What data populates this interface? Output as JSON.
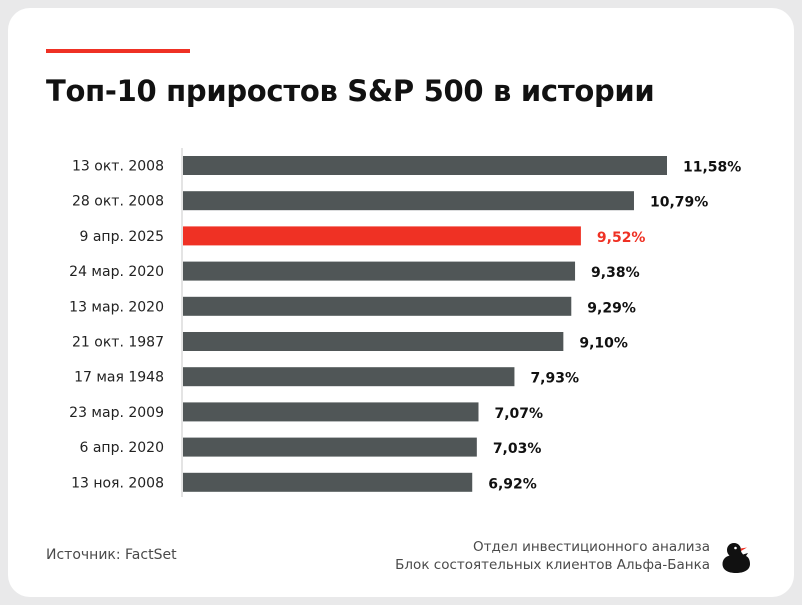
{
  "title": "Топ-10 приростов S&P 500 в истории",
  "colors": {
    "accent": "#ef3124",
    "bar": "#505657",
    "highlight": "#ef3124",
    "text": "#111111"
  },
  "chart_data": {
    "type": "bar",
    "orientation": "horizontal",
    "categories": [
      "13 окт. 2008",
      "28 окт. 2008",
      "9 апр. 2025",
      "24 мар. 2020",
      "13 мар. 2020",
      "21 окт. 1987",
      "17 мая 1948",
      "23 мар. 2009",
      "6 апр. 2020",
      "13 ноя. 2008"
    ],
    "values": [
      11.58,
      10.79,
      9.52,
      9.38,
      9.29,
      9.1,
      7.93,
      7.07,
      7.03,
      6.92
    ],
    "value_labels": [
      "11,58%",
      "10,79%",
      "9,52%",
      "9,38%",
      "9,29%",
      "9,10%",
      "7,93%",
      "7,07%",
      "7,03%",
      "6,92%"
    ],
    "highlight_index": 2,
    "xlim": [
      0,
      11.58
    ],
    "grid": false,
    "legend": "none"
  },
  "footer": {
    "source": "Источник: FactSet",
    "dept_line1": "Отдел инвестиционного анализа",
    "dept_line2": "Блок состоятельных клиентов Альфа-Банка"
  },
  "logo_icon": "duck-logo-icon"
}
